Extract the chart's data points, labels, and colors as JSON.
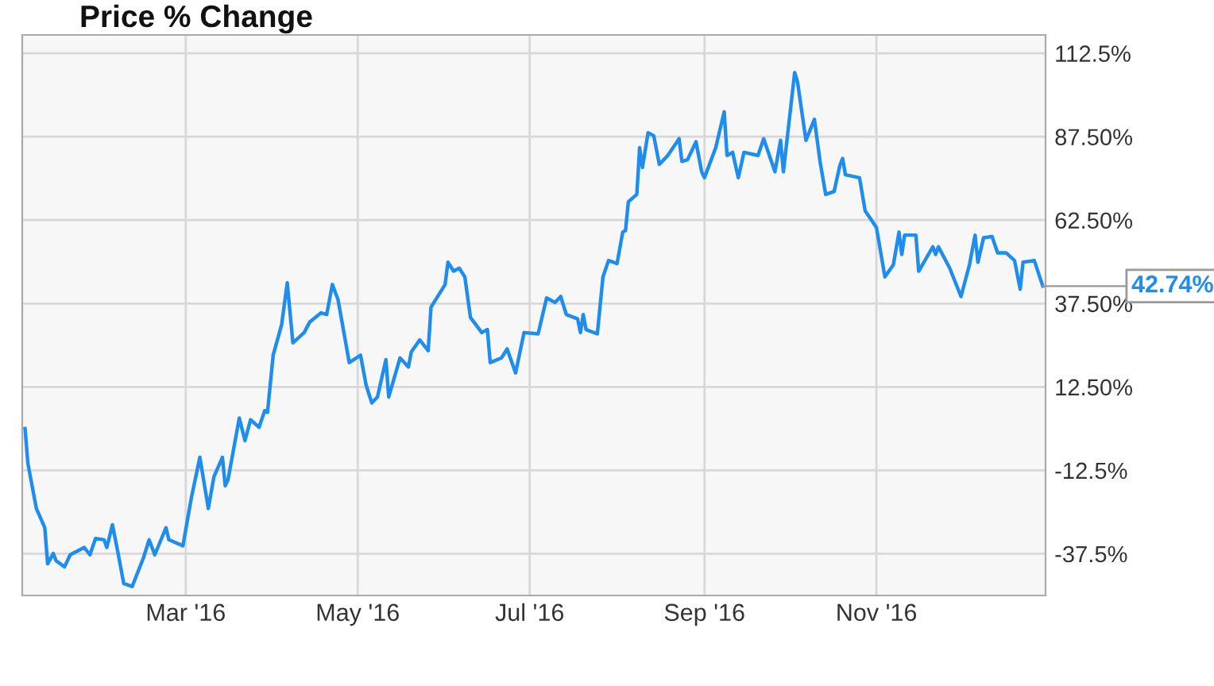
{
  "chart_data": {
    "type": "line",
    "title": "Price % Change",
    "x": [
      "2016-01-04",
      "2016-01-05",
      "2016-01-08",
      "2016-01-11",
      "2016-01-12",
      "2016-01-14",
      "2016-01-15",
      "2016-01-18",
      "2016-01-20",
      "2016-01-25",
      "2016-01-27",
      "2016-01-29",
      "2016-02-01",
      "2016-02-02",
      "2016-02-04",
      "2016-02-06",
      "2016-02-08",
      "2016-02-11",
      "2016-02-15",
      "2016-02-17",
      "2016-02-19",
      "2016-02-23",
      "2016-02-24",
      "2016-02-29",
      "2016-03-03",
      "2016-03-06",
      "2016-03-09",
      "2016-03-11",
      "2016-03-14",
      "2016-03-15",
      "2016-03-16",
      "2016-03-20",
      "2016-03-22",
      "2016-03-24",
      "2016-03-27",
      "2016-03-29",
      "2016-03-30",
      "2016-04-01",
      "2016-04-04",
      "2016-04-06",
      "2016-04-08",
      "2016-04-12",
      "2016-04-14",
      "2016-04-18",
      "2016-04-20",
      "2016-04-22",
      "2016-04-24",
      "2016-04-28",
      "2016-05-02",
      "2016-05-04",
      "2016-05-06",
      "2016-05-08",
      "2016-05-11",
      "2016-05-12",
      "2016-05-16",
      "2016-05-19",
      "2016-05-20",
      "2016-05-23",
      "2016-05-26",
      "2016-05-27",
      "2016-06-01",
      "2016-06-02",
      "2016-06-04",
      "2016-06-06",
      "2016-06-08",
      "2016-06-10",
      "2016-06-14",
      "2016-06-16",
      "2016-06-17",
      "2016-06-21",
      "2016-06-23",
      "2016-06-26",
      "2016-06-29",
      "2016-07-04",
      "2016-07-07",
      "2016-07-10",
      "2016-07-12",
      "2016-07-14",
      "2016-07-18",
      "2016-07-19",
      "2016-07-20",
      "2016-07-21",
      "2016-07-25",
      "2016-07-27",
      "2016-07-29",
      "2016-08-01",
      "2016-08-03",
      "2016-08-04",
      "2016-08-05",
      "2016-08-08",
      "2016-08-09",
      "2016-08-10",
      "2016-08-12",
      "2016-08-14",
      "2016-08-16",
      "2016-08-19",
      "2016-08-23",
      "2016-08-24",
      "2016-08-26",
      "2016-08-29",
      "2016-08-31",
      "2016-09-01",
      "2016-09-05",
      "2016-09-08",
      "2016-09-09",
      "2016-09-11",
      "2016-09-13",
      "2016-09-15",
      "2016-09-20",
      "2016-09-22",
      "2016-09-26",
      "2016-09-28",
      "2016-09-29",
      "2016-10-03",
      "2016-10-04",
      "2016-10-07",
      "2016-10-10",
      "2016-10-12",
      "2016-10-14",
      "2016-10-17",
      "2016-10-19",
      "2016-10-20",
      "2016-10-21",
      "2016-10-26",
      "2016-10-28",
      "2016-11-01",
      "2016-11-04",
      "2016-11-07",
      "2016-11-09",
      "2016-11-10",
      "2016-11-11",
      "2016-11-15",
      "2016-11-16",
      "2016-11-21",
      "2016-11-22",
      "2016-11-23",
      "2016-11-27",
      "2016-12-01",
      "2016-12-04",
      "2016-12-06",
      "2016-12-07",
      "2016-12-09",
      "2016-12-12",
      "2016-12-14",
      "2016-12-17",
      "2016-12-20",
      "2016-12-22",
      "2016-12-23",
      "2016-12-27",
      "2016-12-30"
    ],
    "series": [
      {
        "color": "#1f8ded",
        "values": [
          0,
          -10.4,
          -23.9,
          -29.7,
          -40.5,
          -37.4,
          -39.6,
          -41.4,
          -37.8,
          -35.6,
          -37.8,
          -32.9,
          -33.3,
          -35.6,
          -28.8,
          -37.4,
          -46.4,
          -47.3,
          -38.7,
          -33.3,
          -37.8,
          -29.7,
          -33.3,
          -35.1,
          -20.7,
          -8.6,
          -23.9,
          -14.4,
          -8.6,
          -17.1,
          -15.3,
          3.2,
          -3.6,
          2.7,
          0.4,
          5.4,
          4.9,
          22.0,
          31.1,
          43.7,
          25.7,
          28.8,
          32.0,
          34.7,
          34.2,
          43.2,
          38.7,
          19.8,
          22.0,
          13.0,
          7.7,
          9.5,
          20.7,
          9.5,
          21.2,
          18.5,
          23.0,
          26.6,
          23.4,
          36.4,
          43.2,
          49.9,
          47.2,
          48.1,
          45.5,
          33.3,
          28.8,
          29.7,
          19.8,
          21.2,
          23.9,
          16.7,
          28.8,
          28.4,
          39.2,
          37.8,
          39.6,
          34.2,
          32.9,
          28.8,
          34.2,
          29.7,
          28.4,
          45.5,
          50.4,
          49.5,
          58.9,
          59.4,
          68.0,
          70.2,
          84.2,
          78.3,
          88.7,
          87.8,
          79.2,
          81.9,
          86.9,
          80.1,
          80.6,
          86.0,
          77.0,
          75.2,
          84.2,
          95.0,
          81.9,
          82.8,
          75.2,
          82.8,
          81.9,
          86.9,
          77.0,
          86.4,
          77.0,
          106.7,
          104.0,
          86.4,
          92.7,
          80.1,
          70.2,
          71.1,
          78.8,
          81.0,
          76.1,
          75.2,
          65.3,
          60.3,
          45.5,
          49.1,
          58.9,
          52.2,
          58.0,
          58.0,
          47.2,
          54.5,
          52.2,
          54.5,
          48.1,
          39.6,
          49.1,
          58.0,
          49.9,
          57.2,
          57.6,
          52.7,
          52.7,
          50.4,
          41.8,
          49.9,
          50.4,
          42.74
        ]
      }
    ],
    "xlim": [
      "2016-01-03",
      "2016-12-31"
    ],
    "xticks": [
      {
        "value": "2016-03-01",
        "label": "Mar '16"
      },
      {
        "value": "2016-05-01",
        "label": "May '16"
      },
      {
        "value": "2016-07-01",
        "label": "Jul '16"
      },
      {
        "value": "2016-09-01",
        "label": "Sep '16"
      },
      {
        "value": "2016-11-01",
        "label": "Nov '16"
      }
    ],
    "ylim": [
      -50,
      118
    ],
    "yticks": [
      {
        "value": 112.5,
        "label": "112.5%"
      },
      {
        "value": 87.5,
        "label": "87.50%"
      },
      {
        "value": 62.5,
        "label": "62.50%"
      },
      {
        "value": 37.5,
        "label": "37.50%"
      },
      {
        "value": 12.5,
        "label": "12.50%"
      },
      {
        "value": -12.5,
        "label": "-12.5%"
      },
      {
        "value": -37.5,
        "label": "-37.5%"
      }
    ],
    "grid": true,
    "annotations": [
      {
        "text": "42.74%",
        "x": "2016-12-30",
        "y": 42.74
      }
    ]
  }
}
